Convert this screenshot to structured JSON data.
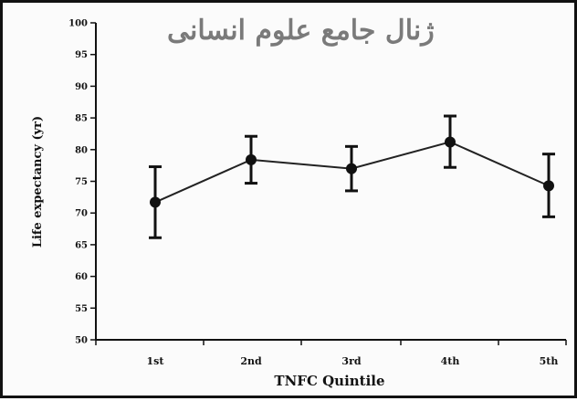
{
  "watermark": "ژنال جامع علوم انسانی",
  "chart_data": {
    "type": "line",
    "xlabel": "TNFC  Quintile",
    "ylabel": "Life expectancy (yr)",
    "categories": [
      "1st",
      "2nd",
      "3rd",
      "4th",
      "5th"
    ],
    "values": [
      71.7,
      78.4,
      77.0,
      81.2,
      74.3
    ],
    "error_low": [
      66.1,
      74.7,
      73.5,
      77.2,
      69.4
    ],
    "error_high": [
      77.3,
      82.1,
      80.5,
      85.3,
      79.3
    ],
    "yticks": [
      50,
      55,
      60,
      65,
      70,
      75,
      80,
      85,
      90,
      95,
      100
    ],
    "ylim": [
      50,
      100
    ],
    "grid": false,
    "line_color": "#222222",
    "marker_color": "#111111"
  }
}
